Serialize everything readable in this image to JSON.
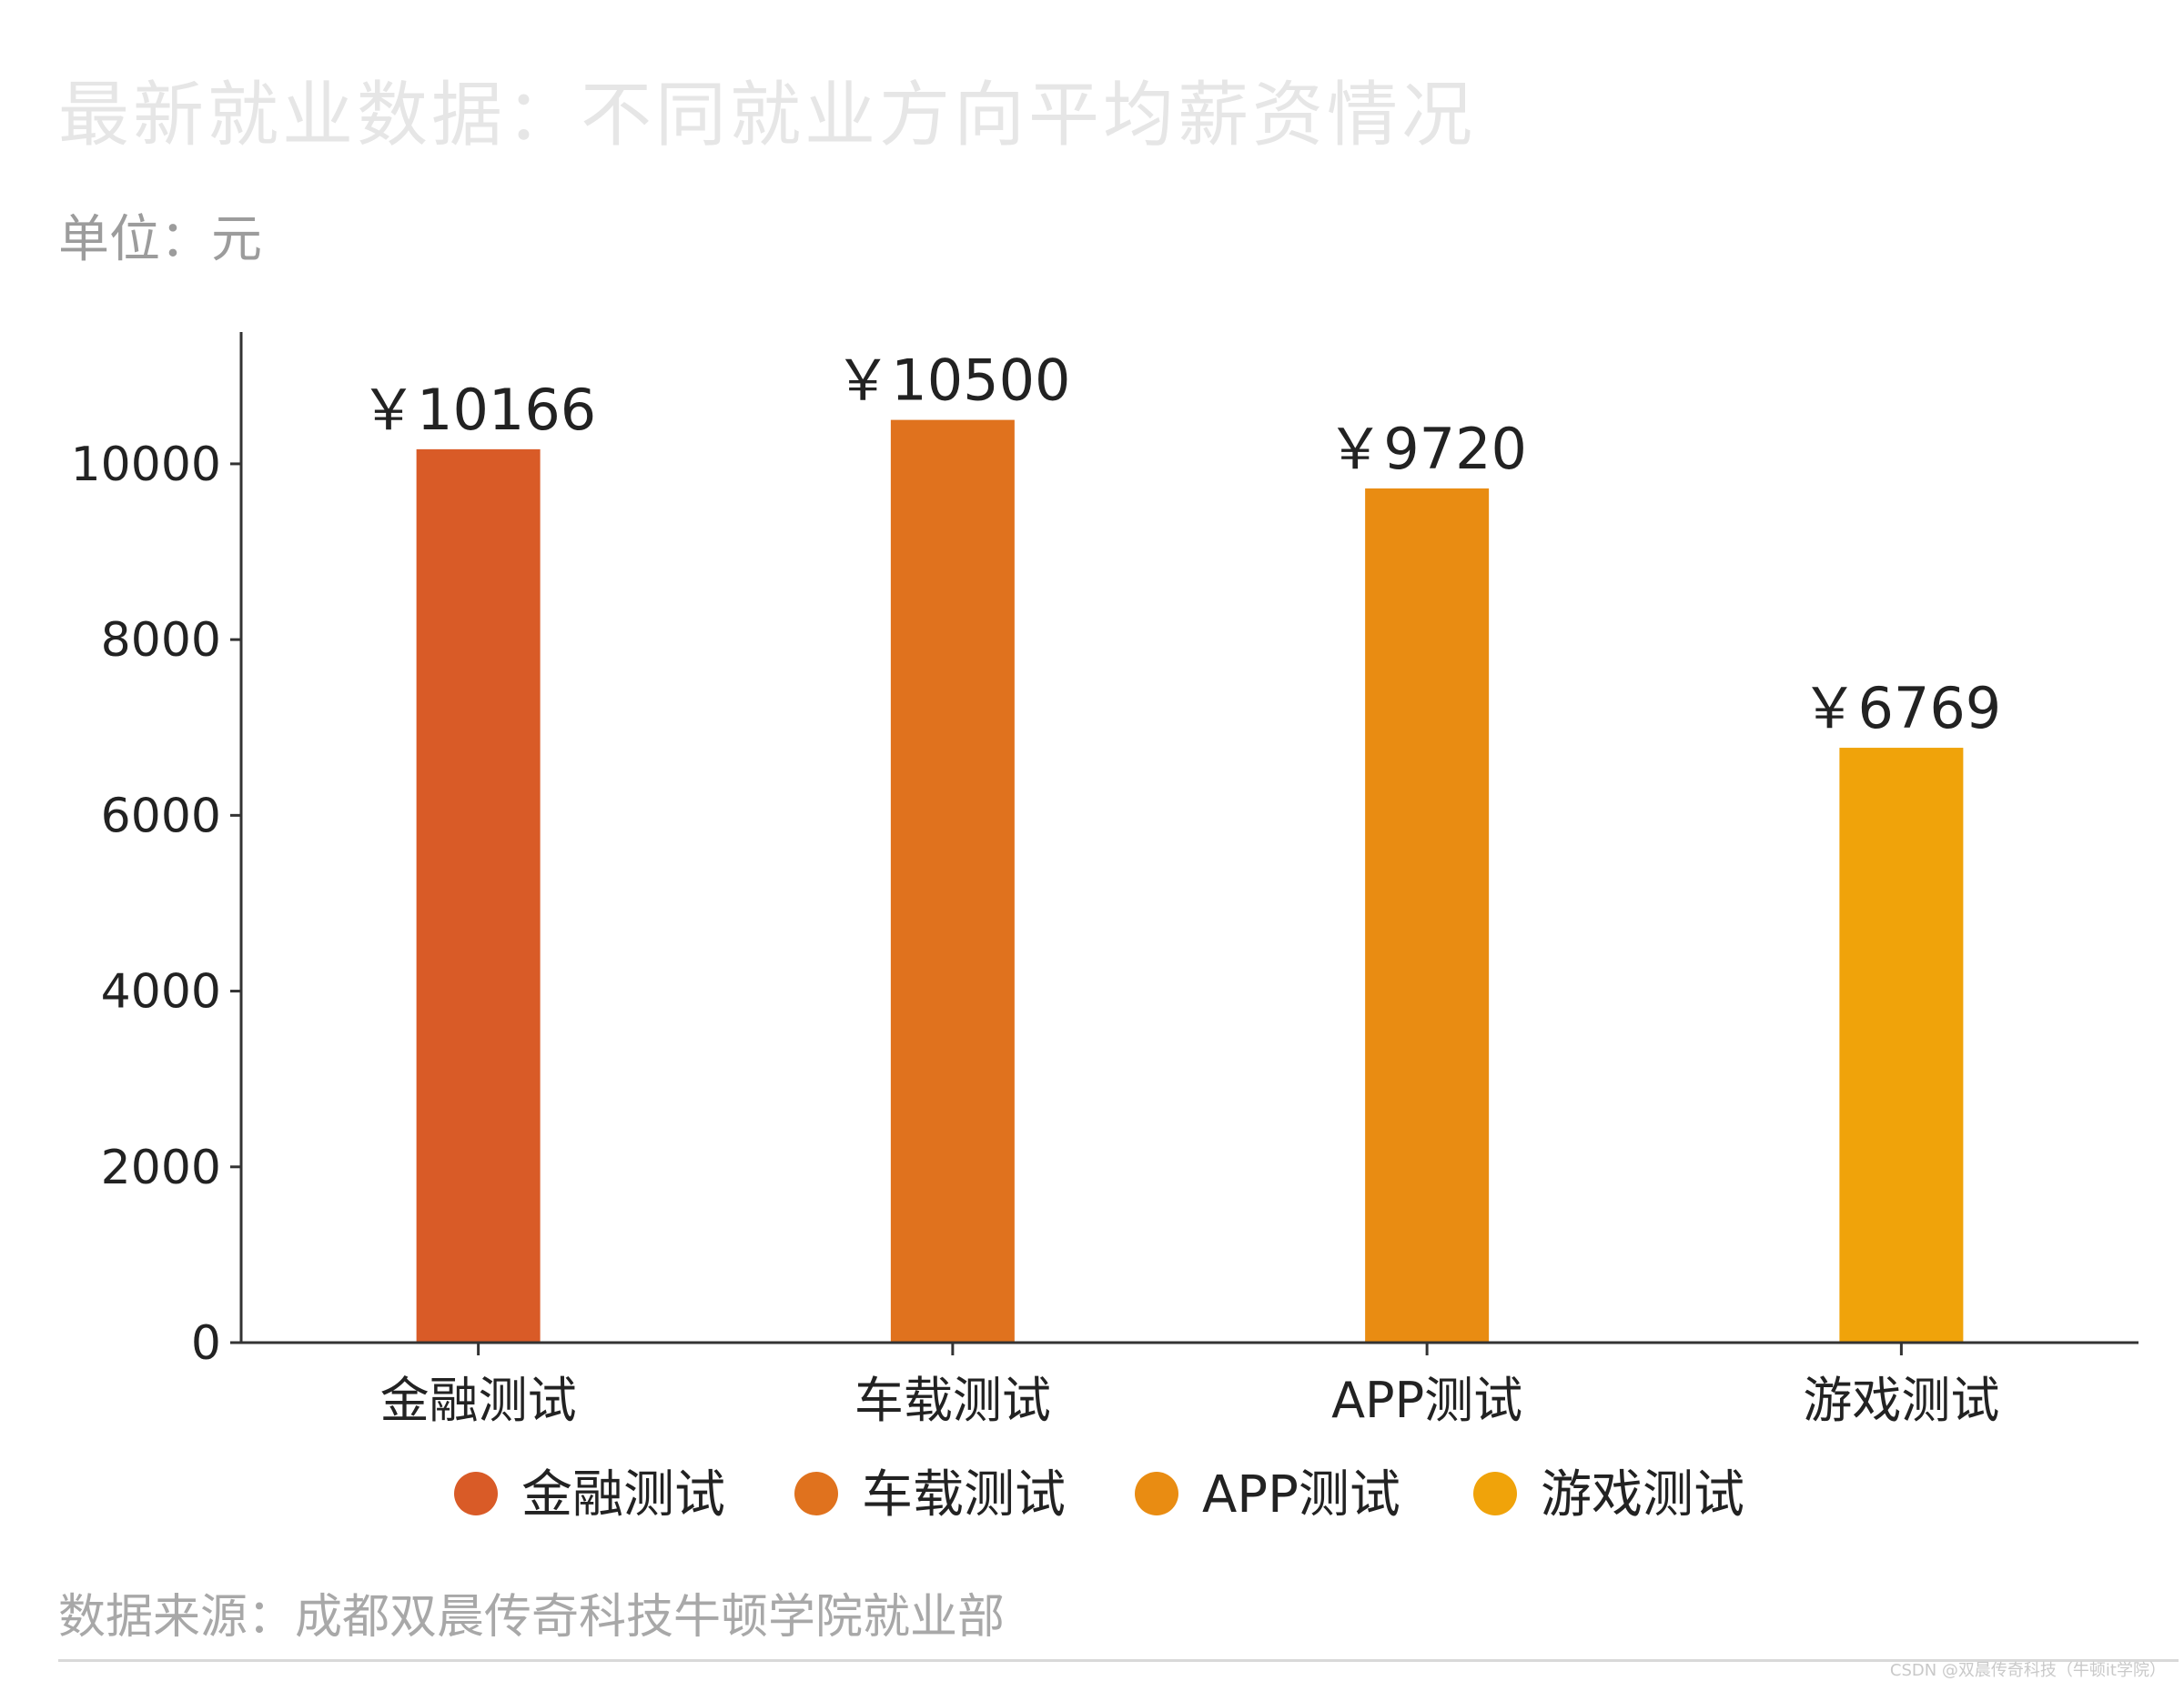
{
  "title": "最新就业数据：不同就业方向平均薪资情况",
  "unit": "单位：元",
  "source": "数据来源：成都双晨传奇科技牛顿学院就业部",
  "watermark": "CSDN @双晨传奇科技（牛顿it学院）",
  "chart_data": {
    "type": "bar",
    "title": "最新就业数据：不同就业方向平均薪资情况",
    "xlabel": "",
    "ylabel": "",
    "categories": [
      "金融测试",
      "车载测试",
      "APP测试",
      "游戏测试"
    ],
    "values": [
      10166,
      10500,
      9720,
      6769
    ],
    "value_labels": [
      "￥10166",
      "￥10500",
      "￥9720",
      "￥6769"
    ],
    "colors": [
      "#d95b27",
      "#e0721e",
      "#e98c12",
      "#f0a30a"
    ],
    "ylim": [
      0,
      11500
    ],
    "yticks": [
      0,
      2000,
      4000,
      6000,
      8000,
      10000
    ],
    "grid": false,
    "legend": {
      "placement": "bottom",
      "entries": [
        "金融测试",
        "车载测试",
        "APP测试",
        "游戏测试"
      ]
    }
  }
}
